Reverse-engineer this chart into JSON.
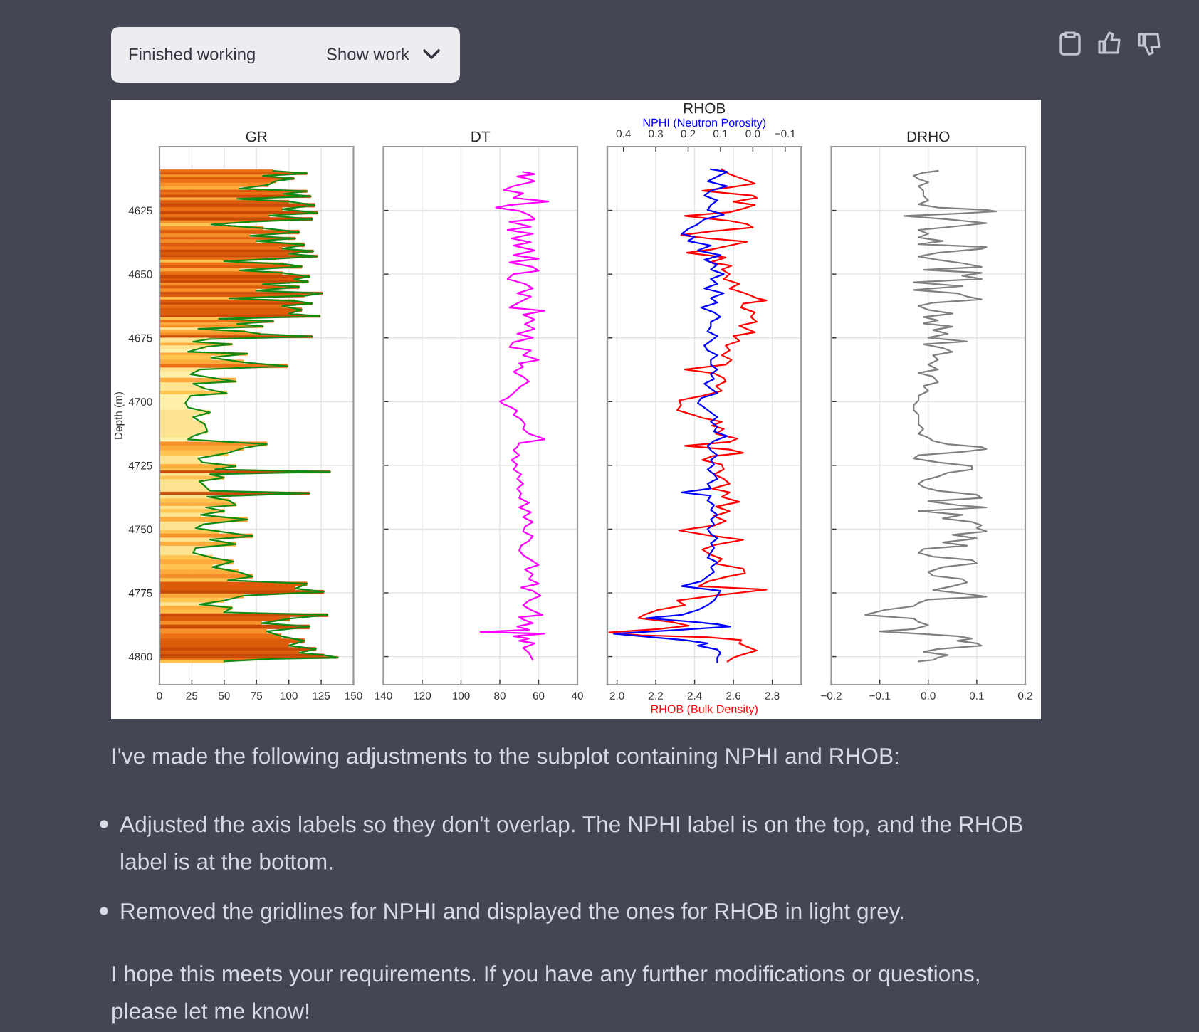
{
  "chart_data": [
    {
      "type": "bar",
      "orientation": "horizontal",
      "title": "GR",
      "ylabel": "Depth (m)",
      "xlim": [
        0,
        150
      ],
      "xticks": [
        0,
        25,
        50,
        75,
        100,
        125,
        150
      ],
      "ylim": [
        4811,
        4600
      ],
      "yticks": [
        4625,
        4650,
        4675,
        4700,
        4725,
        4750,
        4775,
        4800
      ],
      "grid": true,
      "x": [
        4609.5,
        4610.5,
        4611.5,
        4612.5,
        4613.5,
        4615,
        4616.5,
        4617.5,
        4618.5,
        4619.5,
        4620.5,
        4621.5,
        4623,
        4624.5,
        4626,
        4627,
        4628.5,
        4629.5,
        4630.5,
        4632,
        4633.5,
        4635,
        4636,
        4637,
        4638.5,
        4640,
        4641,
        4642,
        4643,
        4644,
        4645,
        4646,
        4647,
        4648.5,
        4649.5,
        4651,
        4652,
        4653,
        4654,
        4655,
        4656.5,
        4657.5,
        4658.5,
        4659.5,
        4660.5,
        4661.5,
        4662.5,
        4664,
        4665.5,
        4666.5,
        4667.5,
        4668.5,
        4669.5,
        4670.5,
        4671.5,
        4672.5,
        4673.5,
        4674.5,
        4675.5,
        4676.5,
        4677.5,
        4678.5,
        4680.5,
        4681.2,
        4682.7,
        4684.6,
        4686.1,
        4687.4,
        4689.3,
        4692.1,
        4693.0,
        4694.9,
        4696.7,
        4697.7,
        4700.5,
        4702.3,
        4704.2,
        4706.1,
        4708.9,
        4711.7,
        4713.5,
        4714.8,
        4716.7,
        4718.2,
        4720.1,
        4722.3,
        4723.8,
        4725.3,
        4726.6,
        4727.5,
        4728.5,
        4729.8,
        4731.3,
        4733.1,
        4735.0,
        4735.9,
        4737.3,
        4738.8,
        4740.6,
        4741.5,
        4742.9,
        4744.4,
        4746.2,
        4748.1,
        4749.6,
        4750.9,
        4752.8,
        4754.1,
        4755.9,
        4757.4,
        4759.3,
        4761.2,
        4762.7,
        4764.9,
        4766.8,
        4768.6,
        4770.1,
        4771.4,
        4773.3,
        4774.6,
        4776.1,
        4778.0,
        4779.5,
        4780.8,
        4782.6,
        4783.6,
        4785.1,
        4786.9,
        4788.2,
        4790.1,
        4792.0,
        4793.8,
        4795.7,
        4797.0,
        4798.5,
        4799.4,
        4800.4,
        4800.9,
        4801.9
      ],
      "series": [
        {
          "type": "bar",
          "values": [
            88,
            114,
            80,
            104,
            90,
            84,
            62,
            114,
            96,
            117,
            60,
            100,
            120,
            95,
            122,
            85,
            118,
            70,
            40,
            80,
            108,
            70,
            105,
            75,
            112,
            95,
            119,
            100,
            122,
            90,
            50,
            96,
            110,
            62,
            95,
            116,
            104,
            115,
            80,
            108,
            75,
            126,
            112,
            54,
            105,
            118,
            95,
            110,
            100,
            124,
            46,
            88,
            60,
            80,
            30,
            66,
            78,
            118,
            38,
            26,
            56,
            36,
            22,
            68,
            40,
            65,
            99,
            31,
            24,
            59,
            26,
            35,
            52,
            24,
            20,
            22,
            39,
            26,
            35,
            37,
            26,
            22,
            83,
            65,
            53,
            30,
            33,
            59,
            43,
            132,
            39,
            50,
            31,
            35,
            39,
            116,
            37,
            54,
            59,
            36,
            50,
            32,
            68,
            34,
            28,
            46,
            72,
            39,
            59,
            28,
            26,
            41,
            57,
            41,
            61,
            72,
            53,
            114,
            105,
            127,
            65,
            50,
            31,
            56,
            50,
            130,
            101,
            79,
            116,
            83,
            94,
            112,
            100,
            121,
            108,
            127,
            138,
            85,
            50
          ],
          "colors": [
            "#ec7014",
            "#dc5c0a",
            "#f8902a",
            "#dc5c0a",
            "#ec7014",
            "#f8902a",
            "#fdab3a",
            "#dc5c0a",
            "#ec7014",
            "#c84a04",
            "#fdab3a",
            "#dc5c0a",
            "#c84a04",
            "#ec7014",
            "#c84a04",
            "#ec7014",
            "#c84a04",
            "#f8902a",
            "#fec44f",
            "#f8902a",
            "#dc5c0a",
            "#f8902a",
            "#dc5c0a",
            "#f8902a",
            "#dc5c0a",
            "#ec7014",
            "#c84a04",
            "#dc5c0a",
            "#c84a04",
            "#ec7014",
            "#fec44f",
            "#ec7014",
            "#dc5c0a",
            "#fdab3a",
            "#ec7014",
            "#c84a04",
            "#dc5c0a",
            "#c84a04",
            "#f8902a",
            "#dc5c0a",
            "#f8902a",
            "#c84a04",
            "#dc5c0a",
            "#fec44f",
            "#dc5c0a",
            "#c84a04",
            "#ec7014",
            "#dc5c0a",
            "#dc5c0a",
            "#c84a04",
            "#fec44f",
            "#ec7014",
            "#fdab3a",
            "#f8902a",
            "#fee391",
            "#fdab3a",
            "#f8902a",
            "#c84a04",
            "#fee391",
            "#fee391",
            "#fdab3a",
            "#fee391",
            "#fff1a8",
            "#fdab3a",
            "#fec44f",
            "#fdab3a",
            "#ec7014",
            "#fee391",
            "#fff1a8",
            "#fdab3a",
            "#fee391",
            "#fee391",
            "#fec44f",
            "#fff1a8",
            "#fff1a8",
            "#fff1a8",
            "#fee391",
            "#fee391",
            "#fee391",
            "#fee391",
            "#fee391",
            "#fff1a8",
            "#f8902a",
            "#fdab3a",
            "#fec44f",
            "#fee391",
            "#fee391",
            "#fdab3a",
            "#fec44f",
            "#c84a04",
            "#fee391",
            "#fec44f",
            "#fee391",
            "#fee391",
            "#fee391",
            "#c84a04",
            "#fee391",
            "#fec44f",
            "#fdab3a",
            "#fee391",
            "#fec44f",
            "#fee391",
            "#fdab3a",
            "#fee391",
            "#fee391",
            "#fec44f",
            "#f8902a",
            "#fee391",
            "#fdab3a",
            "#fee391",
            "#fee391",
            "#fec44f",
            "#fdab3a",
            "#fec44f",
            "#fdab3a",
            "#f8902a",
            "#fec44f",
            "#dc5c0a",
            "#dc5c0a",
            "#c84a04",
            "#fdab3a",
            "#fec44f",
            "#fee391",
            "#fdab3a",
            "#fec44f",
            "#c84a04",
            "#dc5c0a",
            "#f8902a",
            "#c84a04",
            "#f8902a",
            "#ec7014",
            "#dc5c0a",
            "#dc5c0a",
            "#c84a04",
            "#dc5c0a",
            "#c84a04",
            "#c84a04",
            "#ec7014",
            "#fec44f"
          ]
        },
        {
          "type": "line",
          "color": "#138a13",
          "values": [
            88,
            114,
            80,
            104,
            90,
            84,
            62,
            114,
            96,
            117,
            60,
            100,
            120,
            95,
            122,
            85,
            118,
            70,
            40,
            80,
            108,
            70,
            105,
            75,
            112,
            95,
            119,
            100,
            122,
            90,
            50,
            96,
            110,
            62,
            95,
            116,
            104,
            115,
            80,
            108,
            75,
            126,
            112,
            54,
            105,
            118,
            95,
            110,
            100,
            124,
            46,
            88,
            60,
            80,
            30,
            66,
            78,
            118,
            38,
            26,
            56,
            36,
            22,
            68,
            40,
            65,
            99,
            31,
            24,
            59,
            26,
            35,
            52,
            24,
            20,
            22,
            39,
            26,
            35,
            37,
            26,
            22,
            83,
            65,
            53,
            30,
            33,
            59,
            43,
            132,
            39,
            50,
            31,
            35,
            39,
            116,
            37,
            54,
            59,
            36,
            50,
            32,
            68,
            34,
            28,
            46,
            72,
            39,
            59,
            28,
            26,
            41,
            57,
            41,
            61,
            72,
            53,
            114,
            105,
            127,
            65,
            50,
            31,
            56,
            50,
            130,
            101,
            79,
            116,
            83,
            94,
            112,
            100,
            121,
            108,
            127,
            138,
            85,
            50
          ]
        }
      ],
      "annotations": [
        "Finished working",
        "Show work",
        "I've made the following adjustments to the subplot containing NPHI and RHOB:",
        "Adjusted the axis labels so they don't overlap. The NPHI label is on the top, and the RHOB label is at the bottom.",
        "Removed the gridlines for NPHI and displayed the ones for RHOB in light grey.",
        "I hope this meets your requirements. If you have any further modifications or questions, please let me know!"
      ]
    },
    {
      "type": "line",
      "orientation": "horizontal",
      "title": "DT",
      "xlim": [
        140,
        40
      ],
      "xticks": [
        140,
        120,
        100,
        80,
        60,
        40
      ],
      "ylim": [
        4811,
        4600
      ],
      "yticks": [
        4625,
        4650,
        4675,
        4700,
        4725,
        4750,
        4775,
        4800
      ],
      "grid": true,
      "tick_labels": "x",
      "x": [
        4609.9,
        4610.8,
        4611.7,
        4612.7,
        4613.6,
        4615.5,
        4617.0,
        4618.3,
        4620.1,
        4621.5,
        4622.9,
        4623.9,
        4625.2,
        4626.7,
        4628.5,
        4629.5,
        4631.4,
        4632.7,
        4634.2,
        4636.0,
        4637.5,
        4638.8,
        4640.7,
        4642.6,
        4643.9,
        4645.4,
        4647.2,
        4648.7,
        4650.0,
        4651.9,
        4653.8,
        4655.6,
        4657.5,
        4658.8,
        4660.3,
        4663.1,
        4664.4,
        4665.9,
        4667.8,
        4669.6,
        4671.5,
        4673.4,
        4674.9,
        4676.7,
        4678.6,
        4679.9,
        4681.8,
        4683.6,
        4685.0,
        4686.4,
        4688.3,
        4690.2,
        4692.1,
        4693.9,
        4696.7,
        4698.6,
        4699.9,
        4701.0,
        4702.3,
        4703.6,
        4705.1,
        4707.0,
        4708.9,
        4710.7,
        4712.6,
        4714.1,
        4714.8,
        4716.3,
        4717.8,
        4719.1,
        4721.0,
        4722.9,
        4724.7,
        4726.6,
        4728.5,
        4730.3,
        4732.2,
        4734.1,
        4735.9,
        4737.8,
        4739.7,
        4741.5,
        4743.4,
        4745.3,
        4747.2,
        4749.0,
        4750.9,
        4752.8,
        4754.6,
        4756.5,
        4758.4,
        4760.2,
        4762.1,
        4764.0,
        4765.8,
        4767.7,
        4769.6,
        4771.4,
        4772.9,
        4774.2,
        4776.1,
        4778.0,
        4779.8,
        4781.7,
        4783.6,
        4784.5,
        4785.4,
        4786.9,
        4788.2,
        4789.5,
        4790.3,
        4791.0,
        4792.0,
        4792.9,
        4793.8,
        4794.8,
        4796.6,
        4798.5,
        4800.0,
        4801.3
      ],
      "series": [
        {
          "color": "#ff00ff",
          "values": [
            68,
            62,
            71,
            65,
            62,
            73,
            78,
            68,
            73,
            55,
            75,
            82,
            70,
            65,
            62,
            75,
            64,
            76,
            63,
            74,
            64,
            73,
            62,
            73,
            60,
            75,
            63,
            60,
            73,
            76,
            67,
            63,
            71,
            64,
            68,
            75,
            57,
            68,
            62,
            67,
            62,
            71,
            63,
            73,
            75,
            64,
            68,
            60,
            70,
            68,
            73,
            68,
            65,
            69,
            73,
            76,
            80,
            78,
            74,
            71,
            73,
            69,
            67,
            68,
            65,
            59,
            57,
            70,
            71,
            73,
            70,
            74,
            71,
            73,
            69,
            71,
            68,
            71,
            69,
            70,
            65,
            70,
            64,
            68,
            63,
            67,
            68,
            63,
            65,
            69,
            70,
            68,
            64,
            60,
            67,
            63,
            65,
            60,
            69,
            63,
            59,
            65,
            68,
            64,
            58,
            70,
            68,
            63,
            71,
            65,
            90,
            57,
            73,
            65,
            70,
            62,
            68,
            65,
            64,
            63
          ]
        }
      ]
    },
    {
      "type": "line",
      "orientation": "horizontal",
      "title": "RHOB",
      "xlabel": "RHOB (Bulk Density)",
      "x2label": "NPHI (Neutron Porosity)",
      "xlim": [
        1.95,
        2.95
      ],
      "xticks": [
        {
          "value": 2,
          "label": "2.0"
        },
        2.2,
        2.4,
        2.6,
        2.8
      ],
      "x2lim": [
        0.45,
        -0.15
      ],
      "x2ticks": [
        0.4,
        0.3,
        0.2,
        0.1,
        {
          "value": 0,
          "label": "0.0"
        },
        {
          "value": -0.1,
          "label": "−0.1"
        }
      ],
      "ylim": [
        4811,
        4600
      ],
      "yticks": [
        4625,
        4650,
        4675,
        4700,
        4725,
        4750,
        4775,
        4800
      ],
      "grid": true,
      "tick_labels": "x",
      "series": [
        {
          "color": "#ff0000",
          "x": [
            4608.9,
            4610.8,
            4612.7,
            4614.5,
            4616.0,
            4617.3,
            4619.2,
            4620.1,
            4621.6,
            4622.9,
            4624.3,
            4625.7,
            4627.2,
            4629.1,
            4630.4,
            4631.7,
            4633.2,
            4634.7,
            4636.0,
            4637.3,
            4638.8,
            4640.3,
            4641.6,
            4643.5,
            4645.4,
            4646.7,
            4648.2,
            4650.0,
            4651.9,
            4653.8,
            4655.6,
            4657.5,
            4659.4,
            4660.3,
            4661.6,
            4663.1,
            4665.0,
            4666.8,
            4668.7,
            4670.2,
            4671.5,
            4672.8,
            4674.3,
            4676.2,
            4678.0,
            4679.9,
            4681.8,
            4683.6,
            4685.5,
            4687.4,
            4688.9,
            4690.7,
            4692.1,
            4693.9,
            4695.8,
            4697.7,
            4699.5,
            4701.4,
            4703.3,
            4705.1,
            4706.4,
            4707.9,
            4709.4,
            4710.7,
            4712.6,
            4714.5,
            4715.8,
            4717.3,
            4718.8,
            4720.1,
            4721.4,
            4722.9,
            4724.7,
            4726.6,
            4728.5,
            4730.3,
            4732.2,
            4734.1,
            4735.6,
            4737.4,
            4739.3,
            4741.2,
            4743.0,
            4744.9,
            4746.8,
            4748.6,
            4750.5,
            4752.4,
            4754.2,
            4756.1,
            4758.0,
            4759.9,
            4761.7,
            4763.6,
            4765.5,
            4767.3,
            4768.6,
            4770.5,
            4772.4,
            4773.7,
            4775.2,
            4776.7,
            4778.0,
            4779.8,
            4781.7,
            4783.6,
            4784.9,
            4786.4,
            4787.9,
            4789.2,
            4790.5,
            4791.6,
            4792.4,
            4793.5,
            4794.8,
            4796.1,
            4797.6,
            4799.1,
            4800.4,
            4801.9
          ],
          "values": [
            2.54,
            2.58,
            2.65,
            2.71,
            2.58,
            2.44,
            2.7,
            2.72,
            2.6,
            2.71,
            2.65,
            2.58,
            2.35,
            2.58,
            2.67,
            2.7,
            2.49,
            2.33,
            2.47,
            2.67,
            2.58,
            2.49,
            2.36,
            2.56,
            2.48,
            2.59,
            2.54,
            2.58,
            2.55,
            2.63,
            2.58,
            2.66,
            2.72,
            2.77,
            2.65,
            2.64,
            2.71,
            2.69,
            2.72,
            2.63,
            2.67,
            2.71,
            2.6,
            2.63,
            2.56,
            2.58,
            2.54,
            2.59,
            2.56,
            2.35,
            2.5,
            2.55,
            2.56,
            2.51,
            2.54,
            2.44,
            2.32,
            2.33,
            2.31,
            2.39,
            2.44,
            2.54,
            2.49,
            2.55,
            2.51,
            2.62,
            2.58,
            2.35,
            2.58,
            2.65,
            2.49,
            2.44,
            2.54,
            2.55,
            2.5,
            2.55,
            2.58,
            2.49,
            2.58,
            2.54,
            2.63,
            2.51,
            2.58,
            2.5,
            2.56,
            2.5,
            2.32,
            2.47,
            2.65,
            2.51,
            2.44,
            2.48,
            2.54,
            2.51,
            2.65,
            2.66,
            2.57,
            2.47,
            2.42,
            2.77,
            2.6,
            2.44,
            2.31,
            2.35,
            2.21,
            2.14,
            2.11,
            2.28,
            2.37,
            2.21,
            1.96,
            2.12,
            2.47,
            2.64,
            2.63,
            2.67,
            2.72,
            2.65,
            2.6,
            2.57
          ]
        },
        {
          "color": "#0000ff",
          "axis": "x2",
          "x": [
            4608.9,
            4609.9,
            4611.7,
            4613.6,
            4615.5,
            4617.3,
            4619.2,
            4621.1,
            4622.9,
            4624.8,
            4626.7,
            4628.5,
            4630.4,
            4632.3,
            4634.2,
            4635.5,
            4637.0,
            4638.8,
            4640.7,
            4642.6,
            4644.4,
            4646.3,
            4648.2,
            4650.0,
            4651.9,
            4653.8,
            4655.6,
            4657.5,
            4659.4,
            4661.2,
            4663.1,
            4665.0,
            4666.8,
            4668.7,
            4670.6,
            4672.4,
            4674.3,
            4676.2,
            4678.0,
            4679.9,
            4681.8,
            4683.6,
            4685.5,
            4687.4,
            4689.3,
            4691.1,
            4693.0,
            4694.9,
            4696.7,
            4698.6,
            4700.5,
            4702.3,
            4704.2,
            4706.1,
            4707.9,
            4709.8,
            4711.7,
            4713.5,
            4715.4,
            4717.3,
            4719.1,
            4721.0,
            4722.9,
            4724.7,
            4726.6,
            4728.5,
            4730.3,
            4732.2,
            4734.1,
            4735.6,
            4736.9,
            4738.8,
            4740.6,
            4742.5,
            4744.4,
            4746.2,
            4748.1,
            4750.0,
            4751.8,
            4753.7,
            4755.6,
            4757.4,
            4759.3,
            4761.2,
            4763.0,
            4764.9,
            4766.8,
            4768.6,
            4770.5,
            4772.4,
            4774.2,
            4776.1,
            4778.0,
            4779.8,
            4781.7,
            4783.6,
            4784.9,
            4786.4,
            4787.3,
            4788.2,
            4789.7,
            4791.0,
            4792.4,
            4793.5,
            4794.8,
            4795.7,
            4797.2,
            4798.5,
            4800.4,
            4802.2
          ],
          "values": [
            0.13,
            0.08,
            0.11,
            0.14,
            0.08,
            0.13,
            0.15,
            0.11,
            0.13,
            0.14,
            0.09,
            0.15,
            0.17,
            0.2,
            0.22,
            0.18,
            0.2,
            0.13,
            0.17,
            0.1,
            0.15,
            0.11,
            0.13,
            0.09,
            0.13,
            0.11,
            0.15,
            0.09,
            0.13,
            0.11,
            0.16,
            0.12,
            0.1,
            0.13,
            0.13,
            0.14,
            0.11,
            0.13,
            0.15,
            0.14,
            0.11,
            0.13,
            0.13,
            0.11,
            0.13,
            0.12,
            0.15,
            0.13,
            0.11,
            0.16,
            0.17,
            0.15,
            0.13,
            0.11,
            0.13,
            0.11,
            0.12,
            0.08,
            0.12,
            0.14,
            0.13,
            0.11,
            0.13,
            0.12,
            0.14,
            0.12,
            0.11,
            0.14,
            0.13,
            0.22,
            0.13,
            0.14,
            0.12,
            0.13,
            0.11,
            0.13,
            0.12,
            0.14,
            0.13,
            0.11,
            0.13,
            0.12,
            0.13,
            0.14,
            0.11,
            0.13,
            0.12,
            0.14,
            0.16,
            0.22,
            0.1,
            0.11,
            0.12,
            0.14,
            0.17,
            0.22,
            0.33,
            0.18,
            0.11,
            0.07,
            0.25,
            0.43,
            0.31,
            0.21,
            0.14,
            0.17,
            0.11,
            0.1,
            0.11,
            0.11
          ]
        }
      ]
    },
    {
      "type": "line",
      "orientation": "horizontal",
      "title": "DRHO",
      "xlim": [
        -0.2,
        0.2
      ],
      "xticks": [
        {
          "value": -0.2,
          "label": "−0.2"
        },
        {
          "value": -0.1,
          "label": "−0.1"
        },
        {
          "value": 0,
          "label": "0.0"
        },
        0.1,
        0.2
      ],
      "ylim": [
        4811,
        4600
      ],
      "yticks": [
        4625,
        4650,
        4675,
        4700,
        4725,
        4750,
        4775,
        4800
      ],
      "grid": true,
      "tick_labels": "x",
      "x": [
        4609.5,
        4610.2,
        4611.4,
        4612.7,
        4614.0,
        4615.5,
        4617.3,
        4619.2,
        4621.1,
        4622.6,
        4623.9,
        4624.8,
        4625.4,
        4626.3,
        4627.2,
        4628.5,
        4630.0,
        4631.4,
        4632.7,
        4634.2,
        4635.6,
        4637.0,
        4638.3,
        4639.4,
        4640.1,
        4641.6,
        4643.1,
        4644.4,
        4645.7,
        4647.2,
        4648.3,
        4649.5,
        4650.6,
        4651.9,
        4653.2,
        4654.7,
        4656.2,
        4657.5,
        4658.8,
        4659.9,
        4661.2,
        4662.5,
        4664.0,
        4665.5,
        4666.8,
        4668.1,
        4669.3,
        4670.6,
        4671.9,
        4673.4,
        4674.9,
        4676.4,
        4677.5,
        4679.0,
        4680.5,
        4681.8,
        4683.6,
        4685.5,
        4687.4,
        4688.7,
        4690.2,
        4692.4,
        4693.9,
        4695.8,
        4697.7,
        4699.5,
        4701.4,
        4703.3,
        4705.1,
        4707.0,
        4708.9,
        4710.7,
        4712.6,
        4714.1,
        4715.4,
        4716.7,
        4717.8,
        4718.6,
        4719.7,
        4721.0,
        4722.3,
        4723.8,
        4725.3,
        4726.6,
        4727.9,
        4729.4,
        4730.9,
        4732.2,
        4733.5,
        4735.0,
        4736.5,
        4737.8,
        4739.1,
        4740.6,
        4741.5,
        4742.9,
        4744.4,
        4745.8,
        4747.2,
        4748.5,
        4749.6,
        4750.9,
        4752.2,
        4753.7,
        4755.2,
        4756.5,
        4757.8,
        4759.3,
        4760.8,
        4762.1,
        4763.4,
        4764.9,
        4766.8,
        4768.3,
        4769.6,
        4770.9,
        4772.4,
        4773.9,
        4775.2,
        4776.5,
        4777.6,
        4778.9,
        4780.2,
        4781.7,
        4783.6,
        4785.1,
        4786.4,
        4787.7,
        4789.2,
        4790.1,
        4791.0,
        4792.0,
        4792.9,
        4793.8,
        4794.8,
        4795.7,
        4797.0,
        4798.1,
        4799.4,
        4800.4,
        4801.3,
        4801.9
      ],
      "series": [
        {
          "color": "#808080",
          "values": [
            0.02,
            -0.01,
            -0.03,
            -0.02,
            0.0,
            -0.02,
            -0.01,
            -0.01,
            0.0,
            -0.02,
            0.02,
            0.12,
            0.14,
            0.06,
            -0.05,
            0.04,
            0.12,
            0.05,
            -0.02,
            0.0,
            -0.02,
            0.03,
            -0.02,
            0.12,
            0.11,
            0.02,
            -0.02,
            0.02,
            0.07,
            0.11,
            -0.01,
            0.11,
            0.07,
            0.11,
            -0.03,
            0.07,
            -0.03,
            0.06,
            0.08,
            0.11,
            0.01,
            -0.02,
            0.0,
            0.05,
            -0.01,
            0.02,
            -0.01,
            0.05,
            0.01,
            0.04,
            0.0,
            0.08,
            -0.01,
            0.03,
            0.05,
            0.01,
            0.02,
            0.0,
            0.02,
            -0.02,
            0.01,
            0.02,
            -0.01,
            0.0,
            -0.02,
            -0.02,
            -0.03,
            -0.03,
            -0.02,
            -0.02,
            -0.02,
            -0.01,
            -0.02,
            0.0,
            0.01,
            0.04,
            0.11,
            0.12,
            0.07,
            -0.02,
            -0.03,
            0.02,
            0.09,
            0.09,
            0.04,
            0.02,
            -0.01,
            -0.02,
            -0.01,
            0.02,
            0.1,
            0.11,
            0.0,
            0.06,
            0.12,
            -0.02,
            0.07,
            0.03,
            0.09,
            0.11,
            0.1,
            0.12,
            0.05,
            0.1,
            0.03,
            0.08,
            -0.01,
            -0.02,
            0.01,
            0.09,
            0.1,
            0.03,
            0.0,
            0.01,
            0.07,
            0.08,
            0.05,
            0.01,
            0.07,
            0.12,
            0.0,
            -0.02,
            -0.03,
            -0.09,
            -0.13,
            -0.03,
            -0.02,
            0.0,
            -0.03,
            -0.1,
            -0.02,
            0.06,
            0.09,
            0.06,
            0.1,
            0.11,
            0.02,
            -0.01,
            0.04,
            0.02,
            0.01,
            -0.02
          ]
        }
      ]
    }
  ]
}
